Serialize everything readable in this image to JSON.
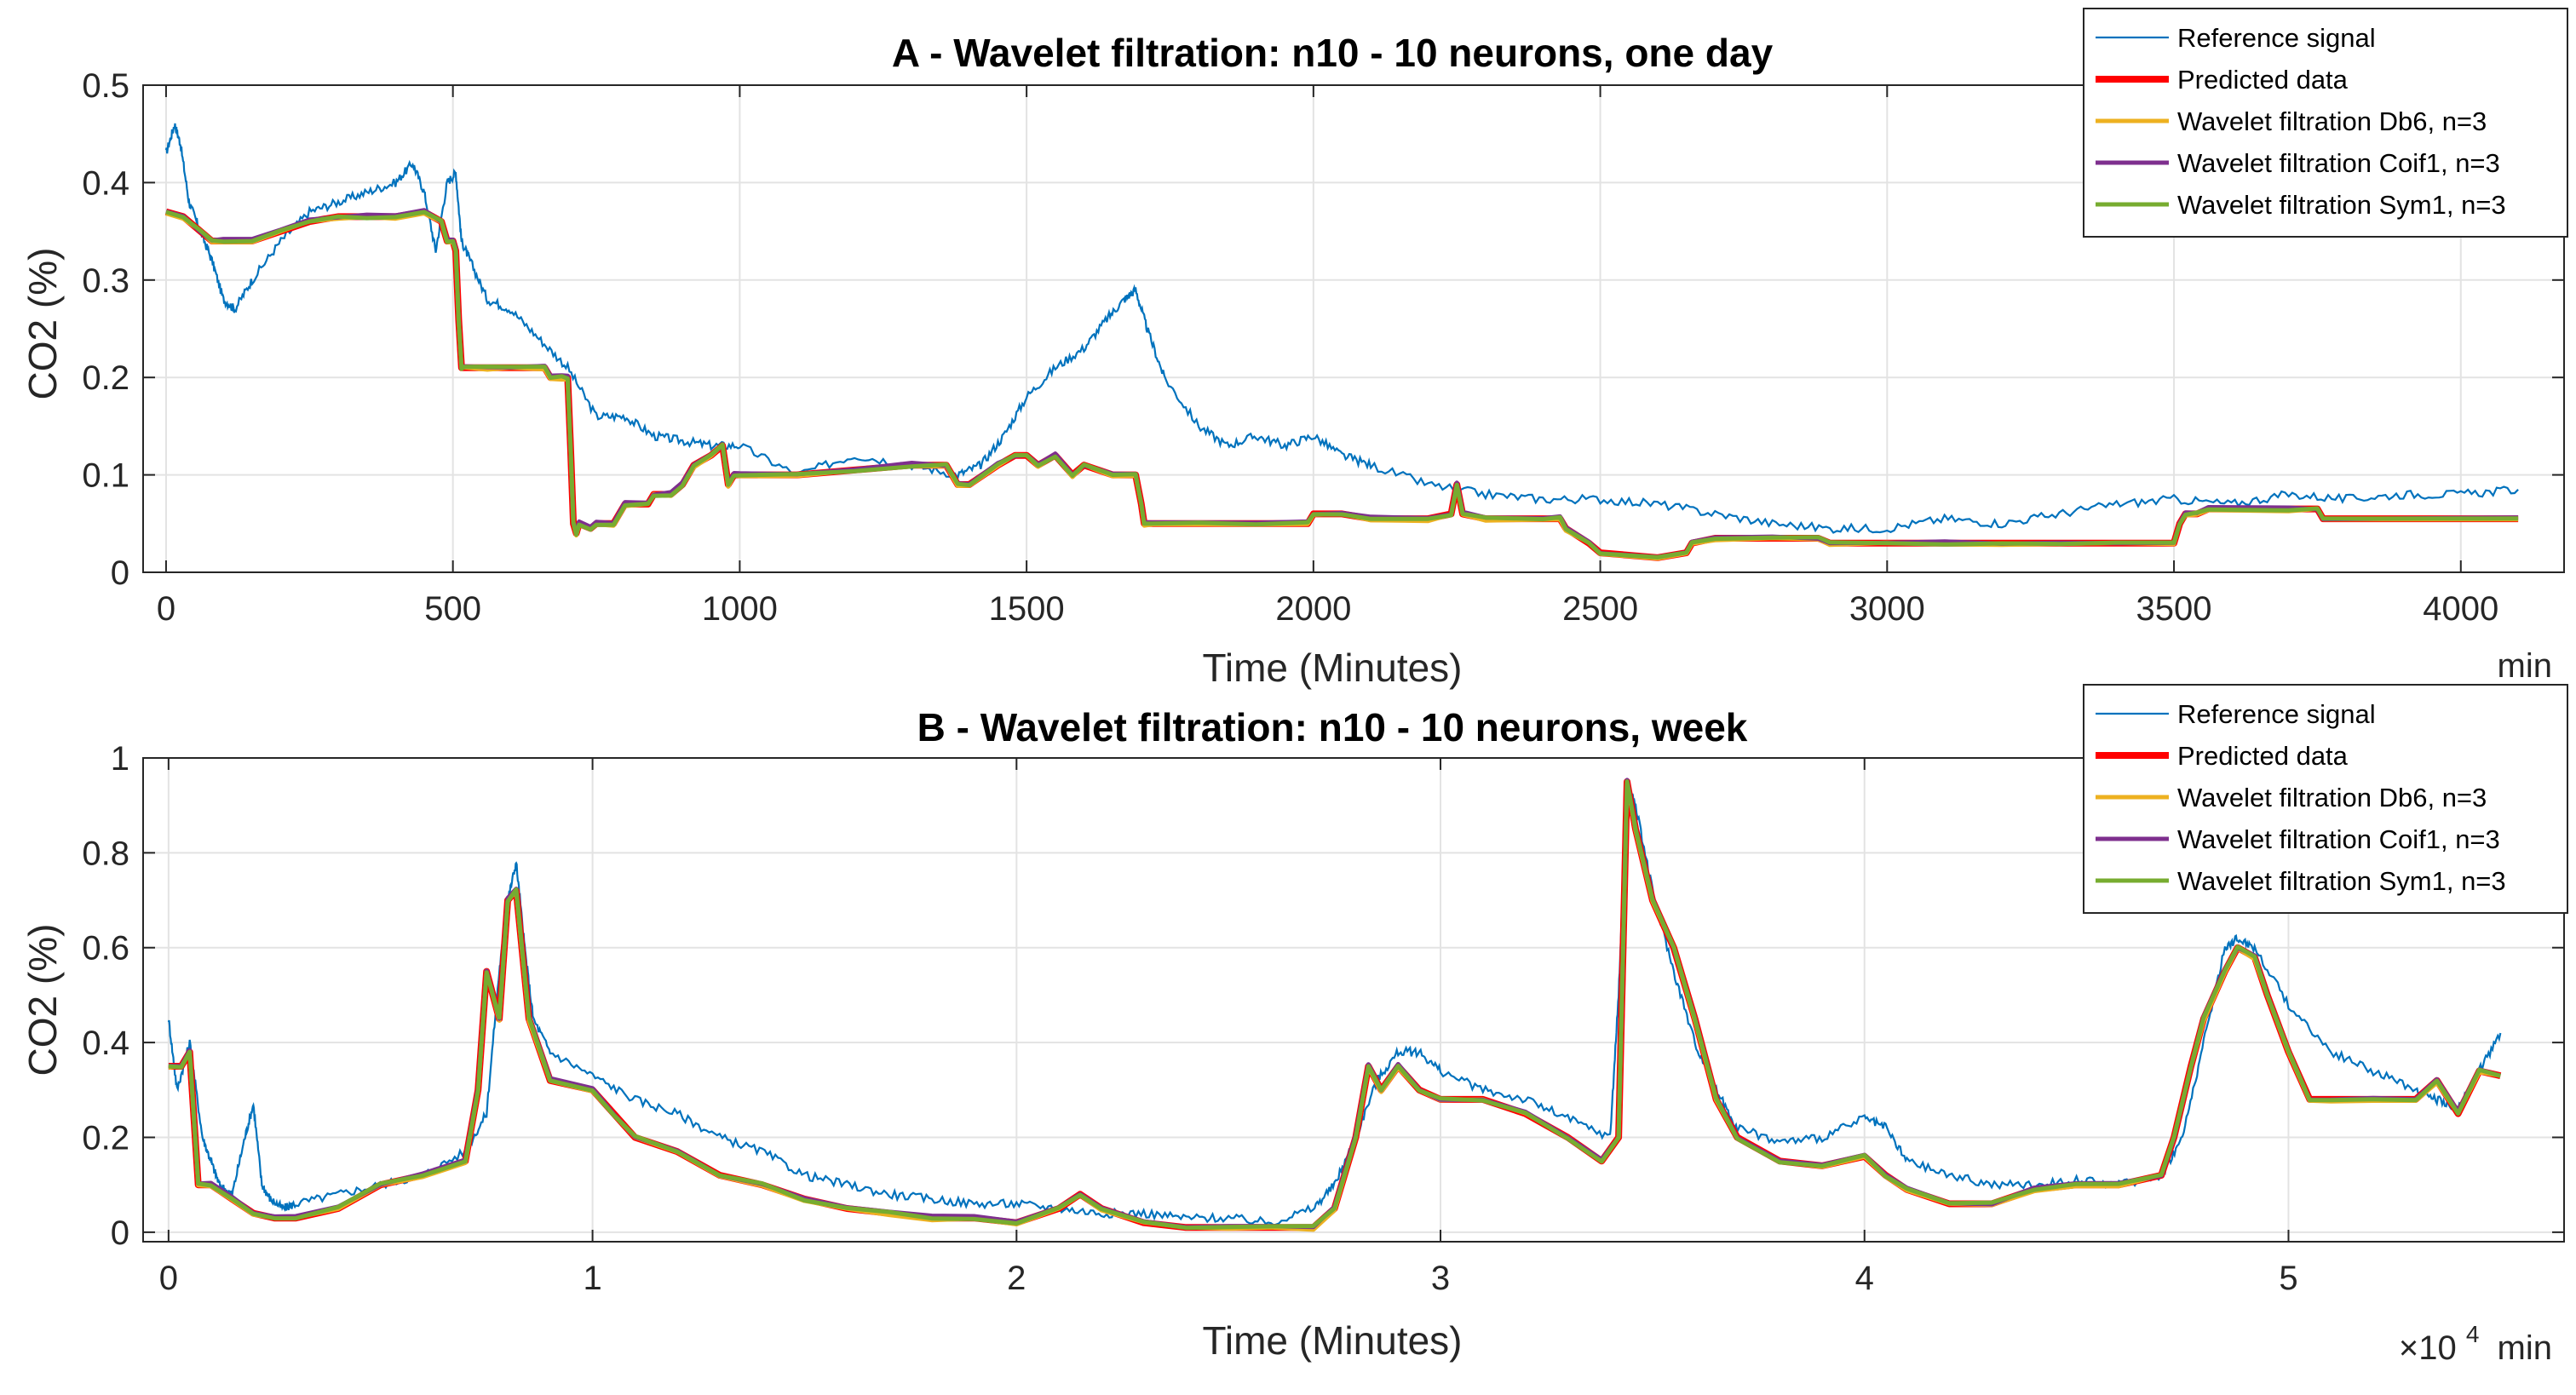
{
  "colors": {
    "reference": "#0072BD",
    "predicted": "#FF0000",
    "db6": "#EDB120",
    "coif1": "#7E2F8E",
    "sym1": "#77AC30",
    "grid": "#E3E3E3",
    "axis": "#262626"
  },
  "chart_data": [
    {
      "id": "A",
      "type": "line",
      "title": "A - Wavelet filtration: n10 - 10 neurons, one day",
      "xlabel": "Time (Minutes)",
      "ylabel": "CO2 (%)",
      "xunit": "min",
      "xlim": [
        -40,
        4180
      ],
      "ylim": [
        0,
        0.5
      ],
      "xticks": [
        0,
        500,
        1000,
        1500,
        2000,
        2500,
        3000,
        3500,
        4000
      ],
      "xtick_labels": [
        "0",
        "500",
        "1000",
        "1500",
        "2000",
        "2500",
        "3000",
        "3500",
        "4000"
      ],
      "yticks": [
        0,
        0.1,
        0.2,
        0.3,
        0.4,
        0.5
      ],
      "ytick_labels": [
        "0",
        "0.1",
        "0.2",
        "0.3",
        "0.4",
        "0.5"
      ],
      "grid": true,
      "legend_position": "top-right",
      "legend": [
        "Reference signal",
        "Predicted data",
        "Wavelet filtration Db6, n=3",
        "Wavelet filtration Coif1, n=3",
        "Wavelet filtration Sym1, n=3"
      ],
      "reference": {
        "name": "Reference signal",
        "x": [
          0,
          15,
          25,
          40,
          60,
          80,
          100,
          120,
          150,
          200,
          250,
          300,
          350,
          400,
          430,
          450,
          470,
          490,
          505,
          515,
          530,
          560,
          600,
          650,
          700,
          750,
          800,
          850,
          900,
          950,
          1000,
          1100,
          1200,
          1300,
          1380,
          1420,
          1460,
          1500,
          1550,
          1600,
          1640,
          1670,
          1690,
          1710,
          1740,
          1800,
          1850,
          1900,
          1950,
          2000,
          2050,
          2100,
          2200,
          2300,
          2400,
          2500,
          2600,
          2700,
          2800,
          2900,
          3000,
          3100,
          3200,
          3300,
          3400,
          3500,
          3600,
          3700,
          3800,
          3900,
          4000,
          4100
        ],
        "y": [
          0.43,
          0.46,
          0.44,
          0.38,
          0.35,
          0.32,
          0.28,
          0.27,
          0.3,
          0.34,
          0.37,
          0.38,
          0.39,
          0.4,
          0.42,
          0.39,
          0.33,
          0.4,
          0.41,
          0.34,
          0.32,
          0.28,
          0.27,
          0.24,
          0.21,
          0.16,
          0.16,
          0.14,
          0.135,
          0.13,
          0.13,
          0.1,
          0.12,
          0.11,
          0.1,
          0.11,
          0.14,
          0.18,
          0.21,
          0.23,
          0.26,
          0.28,
          0.29,
          0.25,
          0.2,
          0.15,
          0.13,
          0.14,
          0.13,
          0.14,
          0.12,
          0.11,
          0.09,
          0.08,
          0.075,
          0.075,
          0.07,
          0.06,
          0.05,
          0.045,
          0.045,
          0.055,
          0.05,
          0.06,
          0.07,
          0.075,
          0.07,
          0.08,
          0.075,
          0.08,
          0.08,
          0.085
        ]
      },
      "predicted": {
        "name": "Predicted data",
        "x": [
          0,
          30,
          60,
          80,
          100,
          150,
          200,
          250,
          300,
          350,
          400,
          450,
          480,
          490,
          500,
          505,
          510,
          515,
          520,
          560,
          600,
          660,
          670,
          690,
          700,
          705,
          710,
          715,
          720,
          740,
          750,
          780,
          800,
          840,
          850,
          880,
          900,
          920,
          950,
          970,
          980,
          990,
          1000,
          1100,
          1200,
          1300,
          1360,
          1380,
          1400,
          1450,
          1480,
          1500,
          1520,
          1550,
          1580,
          1600,
          1650,
          1690,
          1700,
          1705,
          1720,
          1800,
          1900,
          1990,
          2000,
          2050,
          2100,
          2200,
          2240,
          2250,
          2260,
          2300,
          2400,
          2430,
          2440,
          2480,
          2500,
          2600,
          2650,
          2660,
          2700,
          2800,
          2880,
          2900,
          3000,
          3100,
          3200,
          3300,
          3400,
          3500,
          3510,
          3520,
          3540,
          3560,
          3700,
          3750,
          3760,
          4100
        ],
        "y": [
          0.37,
          0.365,
          0.35,
          0.34,
          0.34,
          0.34,
          0.35,
          0.36,
          0.365,
          0.365,
          0.365,
          0.37,
          0.36,
          0.34,
          0.34,
          0.33,
          0.26,
          0.21,
          0.21,
          0.21,
          0.21,
          0.21,
          0.2,
          0.2,
          0.2,
          0.13,
          0.05,
          0.04,
          0.05,
          0.045,
          0.05,
          0.05,
          0.07,
          0.07,
          0.08,
          0.08,
          0.09,
          0.11,
          0.12,
          0.13,
          0.09,
          0.1,
          0.1,
          0.1,
          0.105,
          0.11,
          0.11,
          0.09,
          0.09,
          0.11,
          0.12,
          0.12,
          0.11,
          0.12,
          0.1,
          0.11,
          0.1,
          0.1,
          0.07,
          0.05,
          0.05,
          0.05,
          0.05,
          0.05,
          0.06,
          0.06,
          0.055,
          0.055,
          0.06,
          0.09,
          0.06,
          0.055,
          0.055,
          0.055,
          0.045,
          0.03,
          0.02,
          0.015,
          0.02,
          0.03,
          0.035,
          0.035,
          0.035,
          0.03,
          0.03,
          0.03,
          0.03,
          0.03,
          0.03,
          0.03,
          0.05,
          0.06,
          0.06,
          0.065,
          0.065,
          0.065,
          0.055,
          0.055
        ]
      }
    },
    {
      "id": "B",
      "type": "line",
      "title": "B - Wavelet filtration: n10 - 10 neurons, week",
      "xlabel": "Time (Minutes)",
      "ylabel": "CO2 (%)",
      "xunit": "min",
      "xexponent_base": "×10",
      "xexponent": "4",
      "xlim": [
        -0.06,
        5.65
      ],
      "ylim": [
        -0.02,
        1.0
      ],
      "xticks": [
        0,
        1,
        2,
        3,
        4,
        5
      ],
      "xtick_labels": [
        "0",
        "1",
        "2",
        "3",
        "4",
        "5"
      ],
      "yticks": [
        0,
        0.2,
        0.4,
        0.6,
        0.8,
        1
      ],
      "ytick_labels": [
        "0",
        "0.2",
        "0.4",
        "0.6",
        "0.8",
        "1"
      ],
      "grid": true,
      "legend_position": "top-right",
      "legend": [
        "Reference signal",
        "Predicted data",
        "Wavelet filtration Db6, n=3",
        "Wavelet filtration Coif1, n=3",
        "Wavelet filtration Sym1, n=3"
      ],
      "reference": {
        "name": "Reference signal",
        "x": [
          0,
          0.02,
          0.05,
          0.08,
          0.1,
          0.12,
          0.15,
          0.18,
          0.2,
          0.22,
          0.24,
          0.27,
          0.3,
          0.4,
          0.5,
          0.6,
          0.7,
          0.75,
          0.78,
          0.8,
          0.82,
          0.84,
          0.86,
          0.9,
          1.0,
          1.1,
          1.2,
          1.3,
          1.4,
          1.5,
          1.6,
          1.7,
          1.8,
          1.9,
          2.0,
          2.1,
          2.2,
          2.3,
          2.4,
          2.5,
          2.6,
          2.7,
          2.75,
          2.8,
          2.85,
          2.9,
          2.95,
          3.0,
          3.1,
          3.2,
          3.3,
          3.4,
          3.42,
          3.44,
          3.46,
          3.5,
          3.55,
          3.6,
          3.65,
          3.7,
          3.8,
          3.9,
          4.0,
          4.05,
          4.1,
          4.2,
          4.3,
          4.4,
          4.5,
          4.6,
          4.7,
          4.75,
          4.8,
          4.85,
          4.88,
          4.92,
          5.0,
          5.1,
          5.2,
          5.3,
          5.35,
          5.4,
          5.45,
          5.5
        ],
        "y": [
          0.45,
          0.3,
          0.4,
          0.2,
          0.15,
          0.1,
          0.08,
          0.2,
          0.27,
          0.1,
          0.07,
          0.05,
          0.06,
          0.08,
          0.1,
          0.12,
          0.17,
          0.25,
          0.55,
          0.7,
          0.78,
          0.6,
          0.45,
          0.38,
          0.33,
          0.28,
          0.25,
          0.2,
          0.17,
          0.12,
          0.1,
          0.08,
          0.07,
          0.06,
          0.06,
          0.05,
          0.04,
          0.04,
          0.03,
          0.03,
          0.02,
          0.05,
          0.1,
          0.2,
          0.32,
          0.38,
          0.38,
          0.34,
          0.3,
          0.28,
          0.24,
          0.2,
          0.5,
          0.95,
          0.9,
          0.72,
          0.55,
          0.4,
          0.3,
          0.22,
          0.19,
          0.2,
          0.24,
          0.22,
          0.15,
          0.12,
          0.1,
          0.1,
          0.11,
          0.1,
          0.12,
          0.2,
          0.4,
          0.6,
          0.62,
          0.6,
          0.48,
          0.38,
          0.34,
          0.3,
          0.28,
          0.26,
          0.34,
          0.42
        ]
      },
      "predicted": {
        "name": "Predicted data",
        "x": [
          0,
          0.03,
          0.05,
          0.07,
          0.1,
          0.15,
          0.2,
          0.25,
          0.3,
          0.4,
          0.5,
          0.6,
          0.7,
          0.73,
          0.75,
          0.78,
          0.8,
          0.82,
          0.85,
          0.9,
          1.0,
          1.05,
          1.1,
          1.2,
          1.3,
          1.4,
          1.5,
          1.6,
          1.7,
          1.8,
          1.9,
          2.0,
          2.1,
          2.15,
          2.2,
          2.3,
          2.4,
          2.5,
          2.6,
          2.7,
          2.75,
          2.8,
          2.83,
          2.86,
          2.9,
          2.95,
          3.0,
          3.1,
          3.2,
          3.3,
          3.38,
          3.42,
          3.44,
          3.46,
          3.5,
          3.55,
          3.6,
          3.65,
          3.7,
          3.8,
          3.9,
          4.0,
          4.05,
          4.1,
          4.2,
          4.3,
          4.4,
          4.5,
          4.6,
          4.7,
          4.73,
          4.77,
          4.8,
          4.85,
          4.88,
          4.92,
          4.95,
          5.0,
          5.05,
          5.1,
          5.2,
          5.3,
          5.35,
          5.4,
          5.45,
          5.5
        ],
        "y": [
          0.35,
          0.35,
          0.38,
          0.1,
          0.1,
          0.07,
          0.04,
          0.03,
          0.03,
          0.05,
          0.1,
          0.12,
          0.15,
          0.3,
          0.55,
          0.45,
          0.7,
          0.72,
          0.45,
          0.32,
          0.3,
          0.25,
          0.2,
          0.17,
          0.12,
          0.1,
          0.07,
          0.05,
          0.04,
          0.03,
          0.03,
          0.02,
          0.05,
          0.08,
          0.05,
          0.02,
          0.01,
          0.01,
          0.01,
          0.01,
          0.05,
          0.2,
          0.35,
          0.3,
          0.35,
          0.3,
          0.28,
          0.28,
          0.25,
          0.2,
          0.15,
          0.2,
          0.95,
          0.85,
          0.7,
          0.6,
          0.45,
          0.28,
          0.2,
          0.15,
          0.14,
          0.16,
          0.12,
          0.09,
          0.06,
          0.06,
          0.09,
          0.1,
          0.1,
          0.12,
          0.2,
          0.35,
          0.45,
          0.55,
          0.6,
          0.58,
          0.5,
          0.38,
          0.28,
          0.28,
          0.28,
          0.28,
          0.32,
          0.25,
          0.34,
          0.33
        ]
      }
    }
  ]
}
